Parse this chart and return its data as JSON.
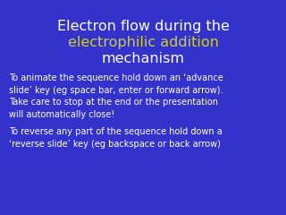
{
  "bg_color": "#3333cc",
  "title_line1": "Electron flow during the",
  "title_line2": "electrophilic addition",
  "title_line3": "mechanism",
  "title_color_white": "#ffffff",
  "title_color_yellow": "#cccc33",
  "body_text1": "To animate the sequence hold down an ‘advance\nslide’ key (eg space bar, enter or forward arrow).\nTake care to stop at the end or the presentation\nwill automatically close!",
  "body_text2": "To reverse any part of the sequence hold down a\n‘reverse slide’ key (eg backspace or back arrow)",
  "body_color": "#ffffff",
  "title_fontsize": 11.5,
  "body_fontsize": 7.0
}
